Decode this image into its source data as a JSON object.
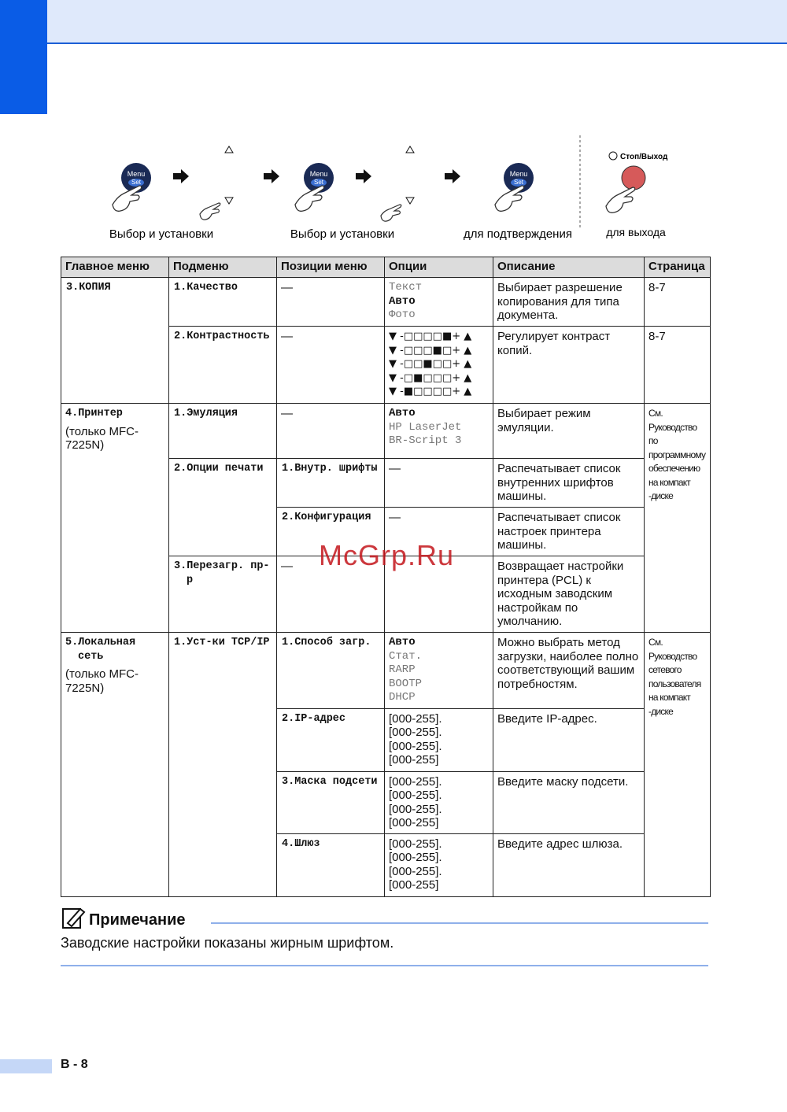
{
  "steps": {
    "menu": "Menu",
    "set": "Set",
    "stop": "Стоп/Выход",
    "labels": [
      "Выбор и установки",
      "Выбор и установки",
      "для подтверждения",
      "для выхода"
    ]
  },
  "table": {
    "columns": [
      "Главное меню",
      "Подменю",
      "Позиции меню",
      "Опции",
      "Описание",
      "Страница"
    ],
    "rows": [
      {
        "main": "3.КОПИЯ",
        "sub": "1.Качество",
        "position": "—",
        "options": [
          "Текст",
          "Авто",
          "Фото"
        ],
        "description": "Выбирает разрешение копирования для типа документа.",
        "page": "8-7"
      },
      {
        "sub": "2.Контрастность",
        "position": "—",
        "options": [
          "▼ -□□□□■+ ▲",
          "▼ -□□□■□+ ▲",
          "▼ -□□■□□+ ▲",
          "▼ -□■□□□+ ▲",
          "▼ -■□□□□+ ▲"
        ],
        "description": "Регулирует контраст копий.",
        "page": "8-7"
      },
      {
        "main": "4.Принтер",
        "main_note": "(только MFC-7225N)",
        "sub": "1.Эмуляция",
        "position": "—",
        "options": [
          "Авто",
          "HP LaserJet",
          "BR-Script 3"
        ],
        "description": "Выбирает режим эмуляции.",
        "page": "См. Руководство по программному обеспечению на компакт -диске"
      },
      {
        "sub": "2.Опции печати",
        "position": "1.Внутр. шрифты",
        "options": [
          "—"
        ],
        "description": "Распечатывает список внутренних шрифтов машины."
      },
      {
        "position": "2.Конфигурация",
        "options": [
          "—"
        ],
        "description": "Распечатывает список настроек принтера машины."
      },
      {
        "sub": "3.Перезагр. пр-р",
        "position": "—",
        "description": "Возвращает настройки принтера (PCL) к исходным заводским настройкам по умолчанию."
      },
      {
        "main": "5.Локальная сеть",
        "main_note": "(только MFC-7225N)",
        "sub": "1.Уст-ки TCP/IP",
        "position": "1.Способ загр.",
        "options": [
          "Авто",
          "Стат.",
          "RARP",
          "BOOTP",
          "DHCP"
        ],
        "description": "Можно выбрать метод загрузки, наиболее полно соответствующий вашим потребностям.",
        "page": "См. Руководство сетевого пользователя на компакт -диске"
      },
      {
        "position": "2.IP-адрес",
        "options": [
          "[000-255].",
          "[000-255].",
          "[000-255].",
          "[000-255]"
        ],
        "description": "Введите IP-адрес."
      },
      {
        "position": "3.Маска подсети",
        "options": [
          "[000-255].",
          "[000-255].",
          "[000-255].",
          "[000-255]"
        ],
        "description": "Введите маску подсети."
      },
      {
        "position": "4.Шлюз",
        "options": [
          "[000-255].",
          "[000-255].",
          "[000-255].",
          "[000-255]"
        ],
        "description": "Введите адрес шлюза."
      }
    ]
  },
  "watermark": "McGrp.Ru",
  "note": {
    "title": "Примечание",
    "text": "Заводские настройки показаны жирным шрифтом."
  },
  "footer": {
    "page": "B - 8"
  }
}
